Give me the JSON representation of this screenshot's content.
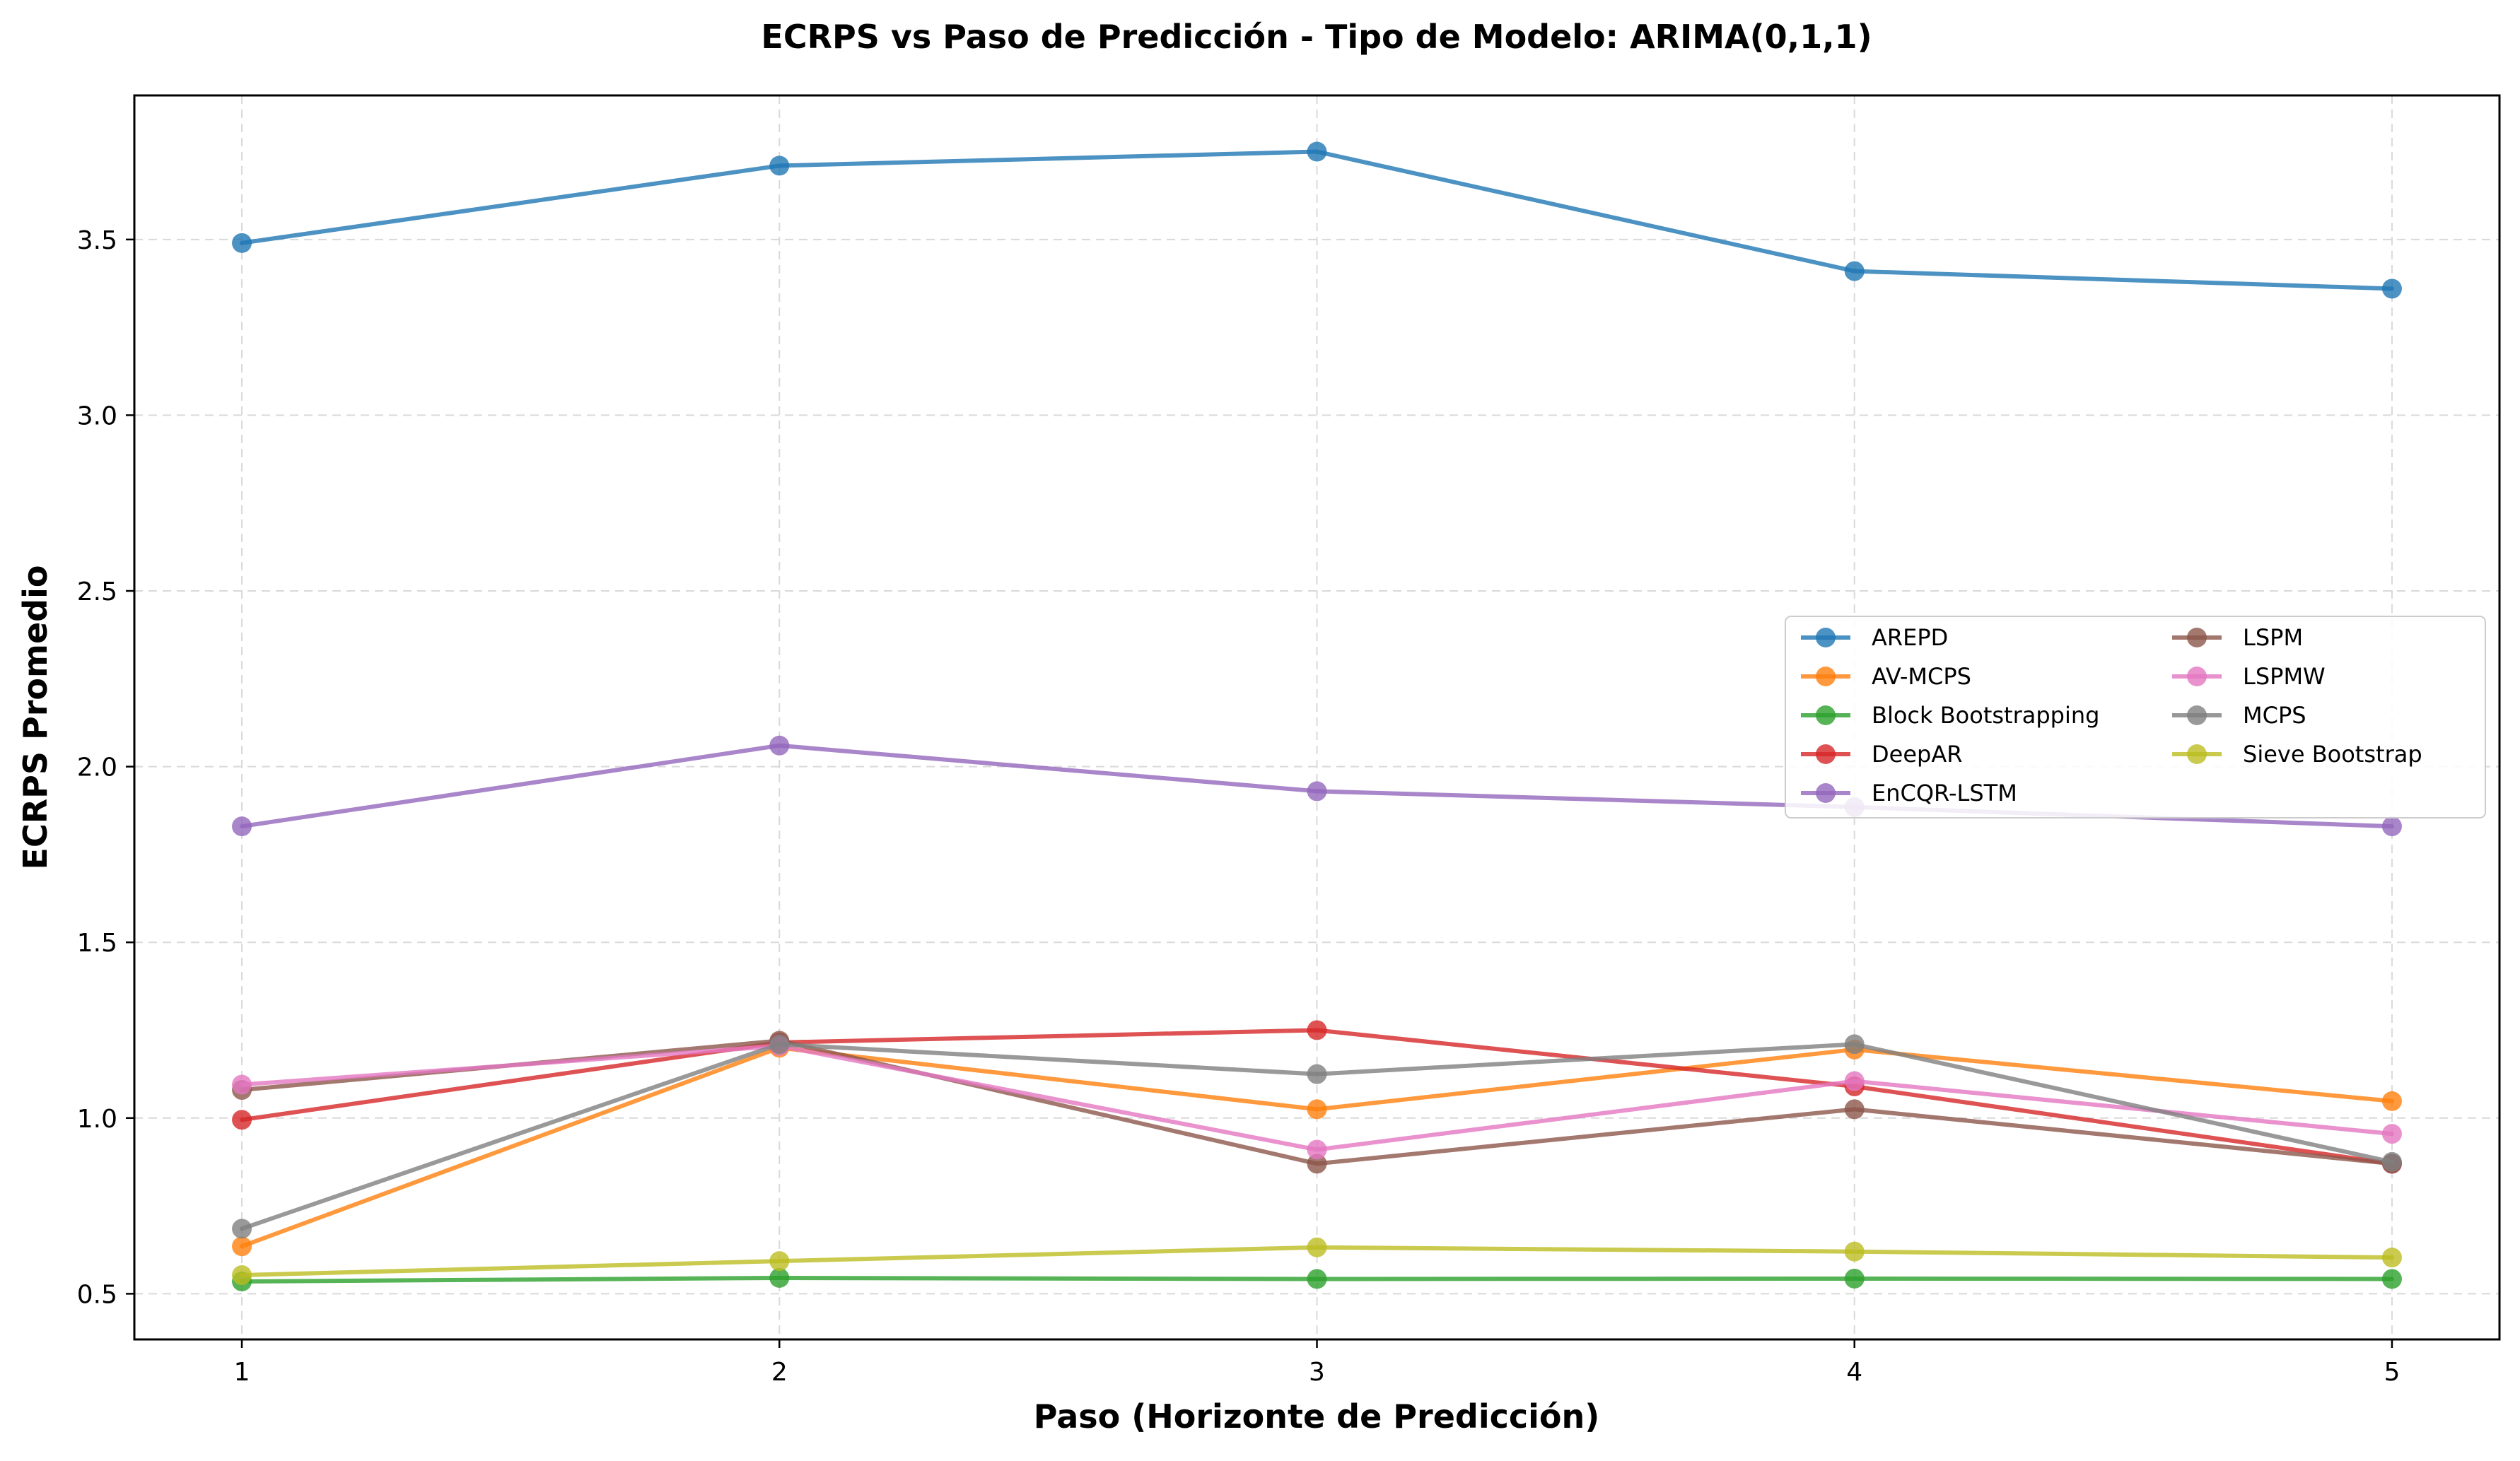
{
  "chart_data": {
    "type": "line",
    "title": "ECRPS vs Paso de Predicción - Tipo de Modelo: ARIMA(0,1,1)",
    "xlabel": "Paso (Horizonte de Predicción)",
    "ylabel": "ECRPS Promedio",
    "x": [
      1,
      2,
      3,
      4,
      5
    ],
    "x_tick_labels": [
      "1",
      "2",
      "3",
      "4",
      "5"
    ],
    "xlim": [
      0.8,
      5.2
    ],
    "ylim": [
      0.37,
      3.91
    ],
    "y_ticks": [
      0.5,
      1.0,
      1.5,
      2.0,
      2.5,
      3.0,
      3.5
    ],
    "y_tick_labels": [
      "0.5",
      "1.0",
      "1.5",
      "2.0",
      "2.5",
      "3.0",
      "3.5"
    ],
    "grid": true,
    "legend_position": "center-right",
    "legend_columns": 2,
    "series": [
      {
        "name": "AREPD",
        "color": "#1f77b4",
        "values": [
          3.49,
          3.71,
          3.75,
          3.41,
          3.36
        ]
      },
      {
        "name": "AV-MCPS",
        "color": "#ff7f0e",
        "values": [
          0.635,
          1.2,
          1.025,
          1.195,
          1.048
        ]
      },
      {
        "name": "Block Bootstrapping",
        "color": "#2ca02c",
        "values": [
          0.535,
          0.545,
          0.542,
          0.543,
          0.542
        ]
      },
      {
        "name": "DeepAR",
        "color": "#d62728",
        "values": [
          0.995,
          1.215,
          1.25,
          1.09,
          0.87
        ]
      },
      {
        "name": "EnCQR-LSTM",
        "color": "#9467bd",
        "values": [
          1.83,
          2.06,
          1.93,
          1.885,
          1.83
        ]
      },
      {
        "name": "LSPM",
        "color": "#8c564b",
        "values": [
          1.08,
          1.22,
          0.87,
          1.025,
          0.87
        ]
      },
      {
        "name": "LSPMW",
        "color": "#e377c2",
        "values": [
          1.095,
          1.205,
          0.91,
          1.105,
          0.955
        ]
      },
      {
        "name": "MCPS",
        "color": "#7f7f7f",
        "values": [
          0.685,
          1.21,
          1.125,
          1.21,
          0.875
        ]
      },
      {
        "name": "Sieve Bootstrap",
        "color": "#bcbd22",
        "values": [
          0.553,
          0.593,
          0.632,
          0.62,
          0.603
        ]
      }
    ]
  }
}
